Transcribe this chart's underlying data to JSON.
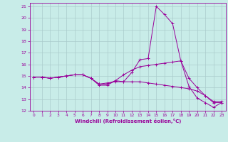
{
  "title": "",
  "xlabel": "Windchill (Refroidissement éolien,°C)",
  "ylabel": "",
  "background_color": "#c8ece8",
  "grid_color": "#aacccc",
  "line_color": "#990099",
  "xlim": [
    -0.5,
    23.5
  ],
  "ylim": [
    12,
    21.3
  ],
  "yticks": [
    12,
    13,
    14,
    15,
    16,
    17,
    18,
    19,
    20,
    21
  ],
  "xticks": [
    0,
    1,
    2,
    3,
    4,
    5,
    6,
    7,
    8,
    9,
    10,
    11,
    12,
    13,
    14,
    15,
    16,
    17,
    18,
    19,
    20,
    21,
    22,
    23
  ],
  "series": [
    {
      "x": [
        0,
        1,
        2,
        3,
        4,
        5,
        6,
        7,
        8,
        9,
        10,
        11,
        12,
        13,
        14,
        15,
        16,
        17,
        18,
        19,
        20,
        21,
        22,
        23
      ],
      "y": [
        14.9,
        14.9,
        14.8,
        14.9,
        15.0,
        15.1,
        15.1,
        14.8,
        14.2,
        14.2,
        14.6,
        14.5,
        15.3,
        16.4,
        16.5,
        21.0,
        20.3,
        19.5,
        16.3,
        14.1,
        13.1,
        12.7,
        12.3,
        12.7
      ]
    },
    {
      "x": [
        0,
        1,
        2,
        3,
        4,
        5,
        6,
        7,
        8,
        9,
        10,
        11,
        12,
        13,
        14,
        15,
        16,
        17,
        18,
        19,
        20,
        21,
        22,
        23
      ],
      "y": [
        14.9,
        14.9,
        14.8,
        14.9,
        15.0,
        15.1,
        15.1,
        14.8,
        14.3,
        14.3,
        14.6,
        15.1,
        15.5,
        15.8,
        15.9,
        16.0,
        16.1,
        16.2,
        16.3,
        14.8,
        14.0,
        13.3,
        12.8,
        12.8
      ]
    },
    {
      "x": [
        0,
        1,
        2,
        3,
        4,
        5,
        6,
        7,
        8,
        9,
        10,
        11,
        12,
        13,
        14,
        15,
        16,
        17,
        18,
        19,
        20,
        21,
        22,
        23
      ],
      "y": [
        14.9,
        14.9,
        14.8,
        14.9,
        15.0,
        15.1,
        15.1,
        14.8,
        14.3,
        14.4,
        14.5,
        14.5,
        14.5,
        14.5,
        14.4,
        14.3,
        14.2,
        14.1,
        14.0,
        13.9,
        13.7,
        13.3,
        12.7,
        12.7
      ]
    }
  ]
}
